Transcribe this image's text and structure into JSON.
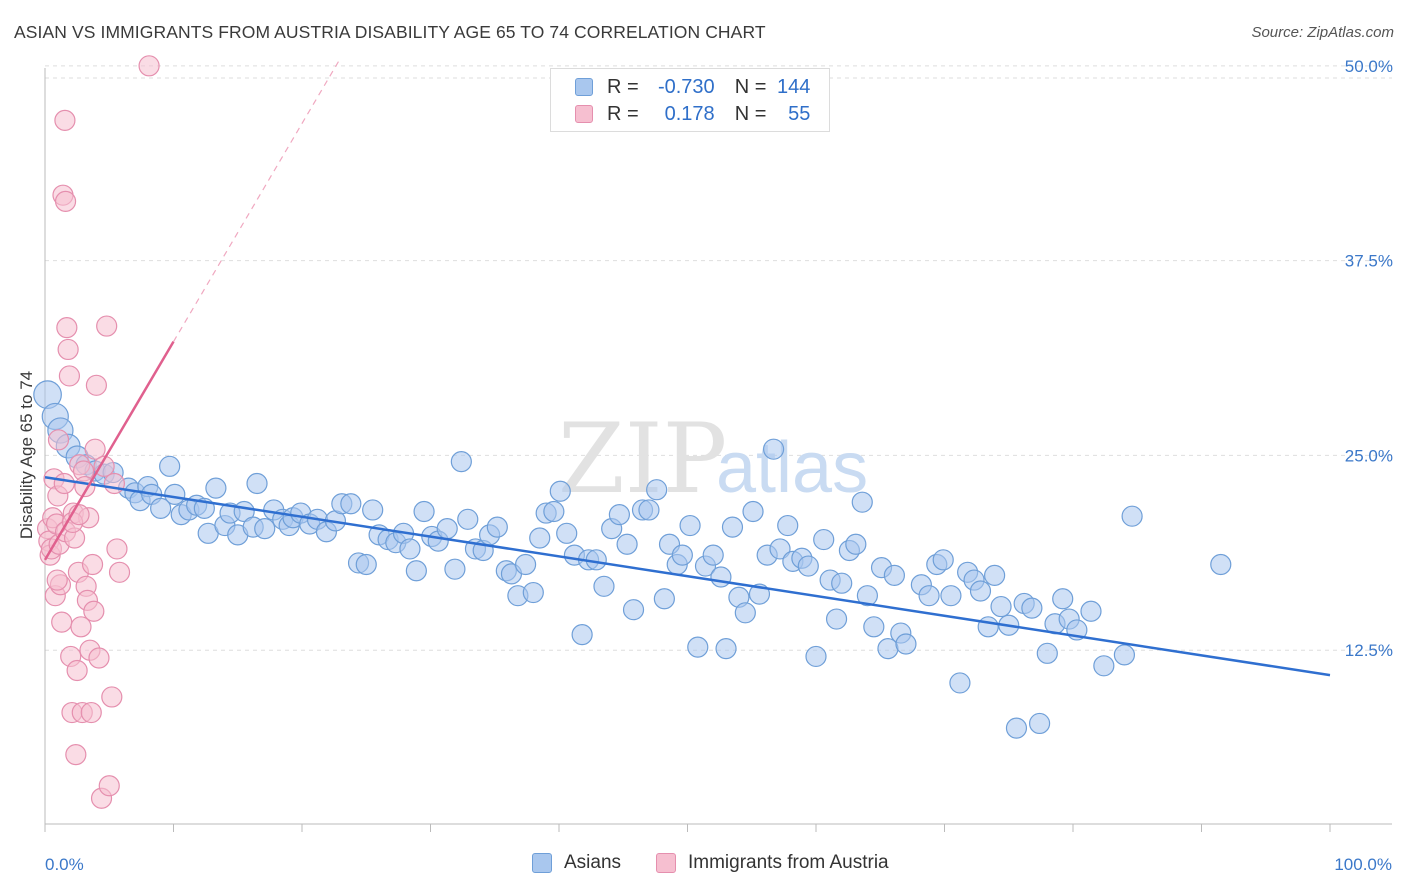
{
  "title": "ASIAN VS IMMIGRANTS FROM AUSTRIA DISABILITY AGE 65 TO 74 CORRELATION CHART",
  "source": "Source: ZipAtlas.com",
  "watermark": {
    "zip": "ZIP",
    "atlas": "atlas"
  },
  "legend": {
    "asian": {
      "r_label": "R =",
      "r_value": "-0.730",
      "n_label": "N =",
      "n_value": "144"
    },
    "austria": {
      "r_label": "R =",
      "r_value": "0.178",
      "n_label": "N =",
      "n_value": "55"
    }
  },
  "bottom_legend": {
    "asian": "Asians",
    "austria": "Immigrants from Austria"
  },
  "colors": {
    "asian": "#6f9fd8",
    "asian_fill": "#a9c7ee",
    "asian_line": "#2f6fd0",
    "austria": "#e58fae",
    "austria_fill": "#f6bfd0",
    "austria_line": "#e0608e",
    "axis_text": "#3b78c9"
  },
  "chart_data": {
    "type": "scatter",
    "title": "ASIAN VS IMMIGRANTS FROM AUSTRIA DISABILITY AGE 65 TO 74 CORRELATION CHART",
    "xlabel": "",
    "ylabel": "Disability Age 65 to 74",
    "xlim": [
      0,
      100
    ],
    "ylim": [
      0,
      52
    ],
    "x_tick_labels": [
      "0.0%",
      "100.0%"
    ],
    "y_ticks": [
      12.5,
      25.0,
      37.5,
      50.0
    ],
    "y_tick_labels": [
      "12.5%",
      "25.0%",
      "37.5%",
      "50.0%"
    ],
    "grid": true,
    "series": [
      {
        "name": "Asians",
        "trend": {
          "x": [
            0,
            100
          ],
          "y": [
            23.6,
            10.9
          ]
        },
        "points": [
          [
            0.2,
            28.9
          ],
          [
            0.8,
            27.5
          ],
          [
            1.2,
            26.6
          ],
          [
            1.8,
            25.6
          ],
          [
            2.5,
            24.9
          ],
          [
            3.2,
            24.4
          ],
          [
            3.9,
            24.0
          ],
          [
            4.6,
            23.8
          ],
          [
            5.3,
            23.9
          ],
          [
            6.5,
            22.9
          ],
          [
            7.0,
            22.6
          ],
          [
            7.4,
            22.1
          ],
          [
            8.0,
            23.0
          ],
          [
            8.3,
            22.5
          ],
          [
            9.0,
            21.6
          ],
          [
            9.7,
            24.3
          ],
          [
            10.1,
            22.5
          ],
          [
            10.6,
            21.2
          ],
          [
            11.2,
            21.5
          ],
          [
            11.8,
            21.8
          ],
          [
            12.4,
            21.6
          ],
          [
            12.7,
            20.0
          ],
          [
            13.3,
            22.9
          ],
          [
            14.0,
            20.5
          ],
          [
            14.4,
            21.3
          ],
          [
            15.0,
            19.9
          ],
          [
            15.5,
            21.4
          ],
          [
            16.2,
            20.4
          ],
          [
            16.5,
            23.2
          ],
          [
            17.1,
            20.3
          ],
          [
            17.8,
            21.5
          ],
          [
            18.5,
            20.9
          ],
          [
            19.0,
            20.5
          ],
          [
            19.3,
            21.0
          ],
          [
            19.9,
            21.3
          ],
          [
            20.6,
            20.6
          ],
          [
            21.2,
            20.9
          ],
          [
            21.9,
            20.1
          ],
          [
            22.6,
            20.8
          ],
          [
            23.1,
            21.9
          ],
          [
            23.8,
            21.9
          ],
          [
            24.4,
            18.1
          ],
          [
            25.0,
            18.0
          ],
          [
            25.5,
            21.5
          ],
          [
            26.0,
            19.9
          ],
          [
            26.7,
            19.6
          ],
          [
            27.3,
            19.4
          ],
          [
            27.9,
            20.0
          ],
          [
            28.4,
            19.0
          ],
          [
            28.9,
            17.6
          ],
          [
            29.5,
            21.4
          ],
          [
            30.1,
            19.8
          ],
          [
            30.6,
            19.5
          ],
          [
            31.3,
            20.3
          ],
          [
            31.9,
            17.7
          ],
          [
            32.4,
            24.6
          ],
          [
            32.9,
            20.9
          ],
          [
            33.5,
            19.0
          ],
          [
            34.1,
            18.9
          ],
          [
            34.6,
            19.9
          ],
          [
            35.2,
            20.4
          ],
          [
            35.9,
            17.6
          ],
          [
            36.3,
            17.4
          ],
          [
            36.8,
            16.0
          ],
          [
            37.4,
            18.0
          ],
          [
            38.0,
            16.2
          ],
          [
            38.5,
            19.7
          ],
          [
            39.0,
            21.3
          ],
          [
            39.6,
            21.4
          ],
          [
            40.1,
            22.7
          ],
          [
            40.6,
            20.0
          ],
          [
            41.2,
            18.6
          ],
          [
            41.8,
            13.5
          ],
          [
            42.3,
            18.3
          ],
          [
            42.9,
            18.3
          ],
          [
            43.5,
            16.6
          ],
          [
            44.1,
            20.3
          ],
          [
            44.7,
            21.2
          ],
          [
            45.3,
            19.3
          ],
          [
            45.8,
            15.1
          ],
          [
            46.5,
            21.5
          ],
          [
            47.0,
            21.5
          ],
          [
            47.6,
            22.8
          ],
          [
            48.2,
            15.8
          ],
          [
            48.6,
            19.3
          ],
          [
            49.2,
            18.0
          ],
          [
            49.6,
            18.6
          ],
          [
            50.2,
            20.5
          ],
          [
            50.8,
            12.7
          ],
          [
            51.4,
            17.9
          ],
          [
            52.0,
            18.6
          ],
          [
            52.6,
            17.2
          ],
          [
            53.0,
            12.6
          ],
          [
            53.5,
            20.4
          ],
          [
            54.0,
            15.9
          ],
          [
            54.5,
            14.9
          ],
          [
            55.1,
            21.4
          ],
          [
            55.6,
            16.1
          ],
          [
            56.2,
            18.6
          ],
          [
            56.7,
            25.4
          ],
          [
            57.2,
            19.0
          ],
          [
            57.8,
            20.5
          ],
          [
            58.2,
            18.2
          ],
          [
            58.9,
            18.4
          ],
          [
            59.4,
            17.9
          ],
          [
            60.0,
            12.1
          ],
          [
            60.6,
            19.6
          ],
          [
            61.1,
            17.0
          ],
          [
            61.6,
            14.5
          ],
          [
            62.0,
            16.8
          ],
          [
            62.6,
            18.9
          ],
          [
            63.1,
            19.3
          ],
          [
            63.6,
            22.0
          ],
          [
            64.0,
            16.0
          ],
          [
            64.5,
            14.0
          ],
          [
            65.1,
            17.8
          ],
          [
            65.6,
            12.6
          ],
          [
            66.1,
            17.3
          ],
          [
            66.6,
            13.6
          ],
          [
            67.0,
            12.9
          ],
          [
            68.2,
            16.7
          ],
          [
            68.8,
            16.0
          ],
          [
            69.4,
            18.0
          ],
          [
            69.9,
            18.3
          ],
          [
            70.5,
            16.0
          ],
          [
            71.2,
            10.4
          ],
          [
            71.8,
            17.5
          ],
          [
            72.3,
            17.0
          ],
          [
            72.8,
            16.3
          ],
          [
            73.4,
            14.0
          ],
          [
            73.9,
            17.3
          ],
          [
            74.4,
            15.3
          ],
          [
            75.0,
            14.1
          ],
          [
            75.6,
            7.5
          ],
          [
            76.2,
            15.5
          ],
          [
            76.8,
            15.2
          ],
          [
            77.4,
            7.8
          ],
          [
            78.0,
            12.3
          ],
          [
            78.6,
            14.2
          ],
          [
            79.2,
            15.8
          ],
          [
            79.7,
            14.5
          ],
          [
            80.3,
            13.8
          ],
          [
            81.4,
            15.0
          ],
          [
            82.4,
            11.5
          ],
          [
            84.0,
            12.2
          ],
          [
            84.6,
            21.1
          ],
          [
            91.5,
            18.0
          ]
        ]
      },
      {
        "name": "Immigrants from Austria",
        "trend": {
          "x": [
            0,
            10
          ],
          "y": [
            18.3,
            32.3
          ]
        },
        "trend_extended": {
          "x": [
            10,
            23
          ],
          "y": [
            32.3,
            50.5
          ]
        },
        "points": [
          [
            0.2,
            20.3
          ],
          [
            0.3,
            19.5
          ],
          [
            0.4,
            18.6
          ],
          [
            0.5,
            19.0
          ],
          [
            0.6,
            21.0
          ],
          [
            0.7,
            23.5
          ],
          [
            0.8,
            16.0
          ],
          [
            0.9,
            20.6
          ],
          [
            1.0,
            22.4
          ],
          [
            1.1,
            19.3
          ],
          [
            1.2,
            16.7
          ],
          [
            1.3,
            14.3
          ],
          [
            1.4,
            41.7
          ],
          [
            1.5,
            23.2
          ],
          [
            1.6,
            20.1
          ],
          [
            1.7,
            33.2
          ],
          [
            1.8,
            31.8
          ],
          [
            1.9,
            30.1
          ],
          [
            2.0,
            12.1
          ],
          [
            2.1,
            8.5
          ],
          [
            2.2,
            21.3
          ],
          [
            2.3,
            19.7
          ],
          [
            2.4,
            5.8
          ],
          [
            2.5,
            11.2
          ],
          [
            2.6,
            17.5
          ],
          [
            2.7,
            24.4
          ],
          [
            2.8,
            14.0
          ],
          [
            2.9,
            8.5
          ],
          [
            3.0,
            24.0
          ],
          [
            3.1,
            23.0
          ],
          [
            3.2,
            16.6
          ],
          [
            3.3,
            15.7
          ],
          [
            3.4,
            21.0
          ],
          [
            3.5,
            12.5
          ],
          [
            3.6,
            8.5
          ],
          [
            3.7,
            18.0
          ],
          [
            3.8,
            15.0
          ],
          [
            3.9,
            25.4
          ],
          [
            4.0,
            29.5
          ],
          [
            4.2,
            12.0
          ],
          [
            4.4,
            3.0
          ],
          [
            4.6,
            24.3
          ],
          [
            4.8,
            33.3
          ],
          [
            5.0,
            3.8
          ],
          [
            5.2,
            9.5
          ],
          [
            5.4,
            23.2
          ],
          [
            5.6,
            19.0
          ],
          [
            5.8,
            17.5
          ],
          [
            1.6,
            41.3
          ],
          [
            1.55,
            46.5
          ],
          [
            8.1,
            50.0
          ],
          [
            1.05,
            26.0
          ],
          [
            2.15,
            20.7
          ],
          [
            2.65,
            21.2
          ],
          [
            0.95,
            17.0
          ]
        ]
      }
    ]
  }
}
